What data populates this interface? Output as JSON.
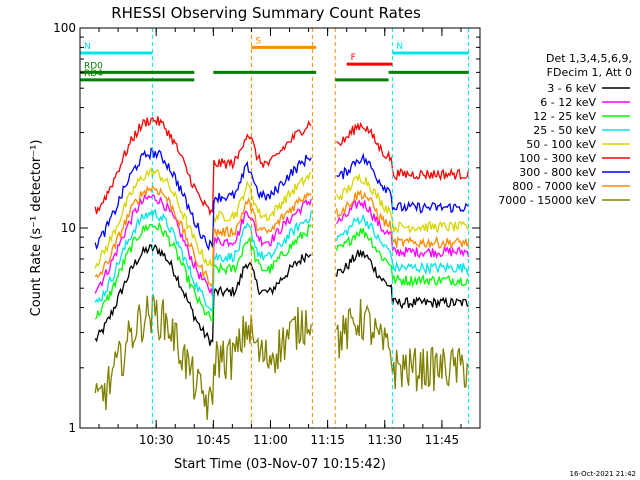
{
  "chart_data": {
    "type": "line",
    "title": "RHESSI Observing Summary Count Rates",
    "xlabel": "Start Time (03-Nov-07 10:15:42)",
    "ylabel": "Count Rate (s⁻¹ detector⁻¹)",
    "yscale": "log",
    "ylim": [
      1,
      100
    ],
    "xlim_minutes": [
      10,
      115
    ],
    "x_ticks": [
      {
        "minute": 30,
        "label": "10:30"
      },
      {
        "minute": 45,
        "label": "10:45"
      },
      {
        "minute": 60,
        "label": "11:00"
      },
      {
        "minute": 75,
        "label": "11:15"
      },
      {
        "minute": 90,
        "label": "11:30"
      },
      {
        "minute": 105,
        "label": "11:45"
      }
    ],
    "y_ticks": [
      {
        "value": 1,
        "label": "1"
      },
      {
        "value": 10,
        "label": "10"
      },
      {
        "value": 100,
        "label": "100"
      }
    ],
    "legend_header": [
      "Det 1,3,4,5,6,9,",
      "FDecim 1, Att 0"
    ],
    "legend_position": "right",
    "footer_date": "16-Oct-2021 21:42",
    "series": [
      {
        "name": "3 - 6 keV",
        "color": "#000000",
        "base": 5.0
      },
      {
        "name": "6 - 12 keV",
        "color": "#ff00ff",
        "base": 9.0
      },
      {
        "name": "12 - 25 keV",
        "color": "#00ff00",
        "base": 6.5
      },
      {
        "name": "25 - 50 keV",
        "color": "#00e5e5",
        "base": 7.5
      },
      {
        "name": "50 - 100 keV",
        "color": "#d6d600",
        "base": 12.0
      },
      {
        "name": "100 - 300 keV",
        "color": "#ff0000",
        "base": 22.0
      },
      {
        "name": "300 - 800 keV",
        "color": "#0000ff",
        "base": 15.0
      },
      {
        "name": "800 - 7000 keV",
        "color": "#ff8c00",
        "base": 10.0
      },
      {
        "name": "7000 - 15000 keV",
        "color": "#808000",
        "base": 2.4
      }
    ],
    "gaps_minutes": [
      [
        71,
        77
      ]
    ],
    "night_boundaries_minutes": [
      10,
      29,
      92,
      112
    ],
    "saa_boundaries_minutes": [
      55,
      71,
      77
    ],
    "flags": [
      {
        "label": "N",
        "color": "#00e5e5",
        "range": [
          10,
          29
        ],
        "value": 75
      },
      {
        "label": "N",
        "color": "#00e5e5",
        "range": [
          92,
          112
        ],
        "value": 75
      },
      {
        "label": "RD0",
        "color": "#008000",
        "range": [
          10,
          40
        ],
        "value": 60
      },
      {
        "label": "RD4",
        "color": "#008000",
        "range": [
          10,
          40
        ],
        "value": 55
      },
      {
        "label": "",
        "color": "#008000",
        "range": [
          45,
          72
        ],
        "value": 60
      },
      {
        "label": "",
        "color": "#008000",
        "range": [
          77,
          91
        ],
        "value": 55
      },
      {
        "label": "",
        "color": "#008000",
        "range": [
          91,
          112
        ],
        "value": 60
      },
      {
        "label": "S",
        "color": "#ff8c00",
        "range": [
          55,
          72
        ],
        "value": 80
      },
      {
        "label": "F",
        "color": "#ff0000",
        "range": [
          80,
          92
        ],
        "value": 66
      }
    ]
  }
}
